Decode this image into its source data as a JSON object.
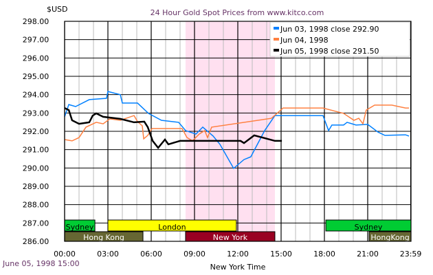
{
  "chart_data": {
    "type": "line",
    "title": "24 Hour Gold Spot Prices from www.kitco.com",
    "ylabel": "$USD",
    "xlabel": "New York Time",
    "timestamp": "June 05, 1998 15:00",
    "ylim": [
      286,
      298
    ],
    "xlim": [
      0,
      24
    ],
    "y_ticks": [
      "286.00",
      "287.00",
      "288.00",
      "289.00",
      "290.00",
      "291.00",
      "292.00",
      "293.00",
      "294.00",
      "295.00",
      "296.00",
      "297.00",
      "298.00"
    ],
    "x_ticks": [
      {
        "h": 0,
        "label": "00:00"
      },
      {
        "h": 3,
        "label": "03:00"
      },
      {
        "h": 6,
        "label": "06:00"
      },
      {
        "h": 9,
        "label": "09:00"
      },
      {
        "h": 12,
        "label": "12:00"
      },
      {
        "h": 15,
        "label": "15:00"
      },
      {
        "h": 18,
        "label": "18:00"
      },
      {
        "h": 21,
        "label": "21:00"
      },
      {
        "h": 23.98,
        "label": "23:59"
      }
    ],
    "grid": true,
    "legend_position": "top-right",
    "highlight_range": {
      "start": 8.38,
      "end": 14.57,
      "color": "#ffe0f0"
    },
    "sessions": [
      {
        "label": "Sydney",
        "start": 0,
        "end": 2.1,
        "row": 1,
        "color": "#00cc33",
        "text_color": "#000000"
      },
      {
        "label": "London",
        "start": 3,
        "end": 11.9,
        "row": 1,
        "color": "#ffff00",
        "text_color": "#000000"
      },
      {
        "label": "Sydney",
        "start": 18.1,
        "end": 24,
        "row": 1,
        "color": "#00cc33",
        "text_color": "#000000"
      },
      {
        "label": "Hong Kong",
        "start": 0,
        "end": 5.43,
        "row": 2,
        "color": "#666633",
        "text_color": "#ffffff"
      },
      {
        "label": "New York",
        "start": 8.38,
        "end": 14.57,
        "row": 2,
        "color": "#990022",
        "text_color": "#ffffff"
      },
      {
        "label": "HongKong",
        "start": 21.1,
        "end": 24,
        "row": 2,
        "color": "#666633",
        "text_color": "#ffffff"
      }
    ],
    "series": [
      {
        "name": "Jun 03, 1998 close 292.90",
        "color": "#0080ff",
        "width": 1.5,
        "points": [
          [
            0,
            292.79
          ],
          [
            0.29,
            293.46
          ],
          [
            0.76,
            293.35
          ],
          [
            1.71,
            293.73
          ],
          [
            2.9,
            293.8
          ],
          [
            3.0,
            294.17
          ],
          [
            3.86,
            294.0
          ],
          [
            4.0,
            293.54
          ],
          [
            5.05,
            293.54
          ],
          [
            5.81,
            292.98
          ],
          [
            6.71,
            292.6
          ],
          [
            7.9,
            292.49
          ],
          [
            8.38,
            292.04
          ],
          [
            9.1,
            291.85
          ],
          [
            9.57,
            292.23
          ],
          [
            10.29,
            291.74
          ],
          [
            10.76,
            291.29
          ],
          [
            11.71,
            289.98
          ],
          [
            12.43,
            290.46
          ],
          [
            12.9,
            290.61
          ],
          [
            13.86,
            292.04
          ],
          [
            14.57,
            292.86
          ],
          [
            17.9,
            292.86
          ],
          [
            18.29,
            292.04
          ],
          [
            18.52,
            292.34
          ],
          [
            19.33,
            292.34
          ],
          [
            19.57,
            292.49
          ],
          [
            20.19,
            292.34
          ],
          [
            21.0,
            292.38
          ],
          [
            21.71,
            291.96
          ],
          [
            22.19,
            291.78
          ],
          [
            23.62,
            291.81
          ],
          [
            23.86,
            291.74
          ]
        ]
      },
      {
        "name": "Jun 04, 1998",
        "color": "#ff8040",
        "width": 1.5,
        "points": [
          [
            0,
            291.55
          ],
          [
            0.52,
            291.48
          ],
          [
            1.0,
            291.66
          ],
          [
            1.48,
            292.23
          ],
          [
            2.19,
            292.49
          ],
          [
            2.67,
            292.41
          ],
          [
            3.14,
            292.68
          ],
          [
            3.86,
            292.6
          ],
          [
            4.81,
            292.86
          ],
          [
            5.05,
            292.53
          ],
          [
            5.38,
            292.3
          ],
          [
            5.48,
            291.59
          ],
          [
            5.76,
            291.78
          ],
          [
            6.05,
            292.15
          ],
          [
            8.14,
            292.15
          ],
          [
            8.48,
            291.66
          ],
          [
            8.86,
            291.48
          ],
          [
            9.33,
            291.85
          ],
          [
            9.71,
            292.04
          ],
          [
            9.9,
            291.66
          ],
          [
            10.19,
            292.23
          ],
          [
            14.33,
            292.71
          ],
          [
            15.14,
            293.27
          ],
          [
            17.9,
            293.27
          ],
          [
            19.33,
            292.98
          ],
          [
            20.05,
            292.6
          ],
          [
            20.38,
            292.71
          ],
          [
            20.67,
            292.41
          ],
          [
            20.9,
            293.16
          ],
          [
            21.48,
            293.43
          ],
          [
            22.67,
            293.43
          ],
          [
            23.62,
            293.27
          ],
          [
            23.86,
            293.27
          ]
        ]
      },
      {
        "name": "Jun 05, 1998 close 291.50",
        "color": "#000000",
        "width": 2.5,
        "points": [
          [
            0,
            293.27
          ],
          [
            0.29,
            293.16
          ],
          [
            0.52,
            292.6
          ],
          [
            1.0,
            292.41
          ],
          [
            1.71,
            292.49
          ],
          [
            1.95,
            292.86
          ],
          [
            2.19,
            292.98
          ],
          [
            2.67,
            292.79
          ],
          [
            3.86,
            292.68
          ],
          [
            4.81,
            292.49
          ],
          [
            5.52,
            292.53
          ],
          [
            5.76,
            292.23
          ],
          [
            6.1,
            291.48
          ],
          [
            6.48,
            291.1
          ],
          [
            6.95,
            291.55
          ],
          [
            7.19,
            291.29
          ],
          [
            8.0,
            291.48
          ],
          [
            12.19,
            291.48
          ],
          [
            12.43,
            291.36
          ],
          [
            13.14,
            291.78
          ],
          [
            14.57,
            291.48
          ],
          [
            15.05,
            291.48
          ]
        ]
      }
    ]
  }
}
